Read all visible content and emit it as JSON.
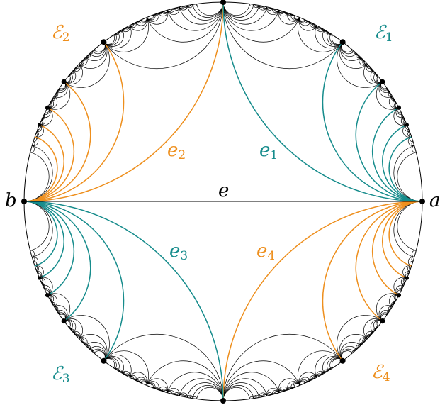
{
  "colors": {
    "orange": "#ee8f1d",
    "teal": "#168c8c",
    "black": "#000000"
  },
  "labels": {
    "a": "a",
    "b": "b",
    "e": "e",
    "e1": {
      "base": "e",
      "sub": "1"
    },
    "e2": {
      "base": "e",
      "sub": "2"
    },
    "e3": {
      "base": "e",
      "sub": "3"
    },
    "e4": {
      "base": "e",
      "sub": "4"
    },
    "E1": {
      "base": "ℰ",
      "sub": "1"
    },
    "E2": {
      "base": "ℰ",
      "sub": "2"
    },
    "E3": {
      "base": "ℰ",
      "sub": "3"
    },
    "E4": {
      "base": "ℰ",
      "sub": "4"
    }
  }
}
